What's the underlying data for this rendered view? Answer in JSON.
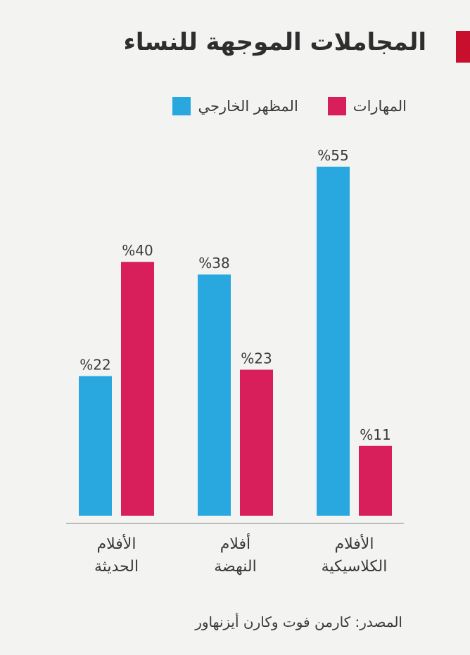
{
  "title": "المجاملات الموجهة للنساء",
  "source": "المصدر: كارمن فوت وكارن أيزنهاور",
  "colors": {
    "accent": "#c8102e",
    "appearance": "#29a8e0",
    "skills": "#d81e5b",
    "axis": "#9a9a9a",
    "text": "#3a3a3a"
  },
  "legend": [
    {
      "label": "المظهر الخارجي",
      "color": "#29a8e0"
    },
    {
      "label": "المهارات",
      "color": "#d81e5b"
    }
  ],
  "chart_data": {
    "type": "bar",
    "categories": [
      [
        "الأفلام",
        "الحديثة"
      ],
      [
        "أفلام",
        "النهضة"
      ],
      [
        "الأفلام",
        "الكلاسيكية"
      ]
    ],
    "series": [
      {
        "name": "المظهر الخارجي",
        "values": [
          22,
          38,
          55
        ],
        "color": "#29a8e0"
      },
      {
        "name": "المهارات",
        "values": [
          40,
          23,
          11
        ],
        "color": "#d81e5b"
      }
    ],
    "value_format": "%{v}",
    "ylim": [
      0,
      60
    ],
    "grid": false,
    "legend_position": "top"
  }
}
